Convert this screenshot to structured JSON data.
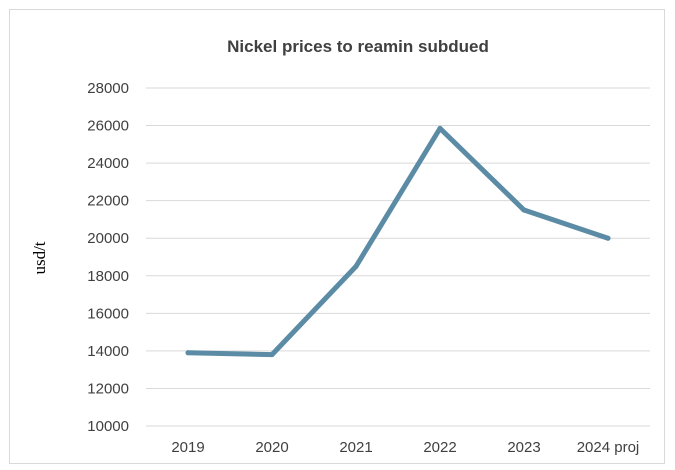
{
  "chart_data": {
    "type": "line",
    "title": "Nickel prices to reamin subdued",
    "xlabel": "",
    "ylabel": "usd/t",
    "categories": [
      "2019",
      "2020",
      "2021",
      "2022",
      "2023",
      "2024 proj"
    ],
    "series": [
      {
        "values": [
          13900,
          13800,
          18500,
          25850,
          21500,
          20000
        ],
        "color": "#5b8ba5"
      }
    ],
    "yticks": [
      "10000",
      "12000",
      "14000",
      "16000",
      "18000",
      "20000",
      "22000",
      "24000",
      "26000",
      "28000"
    ],
    "ylim": [
      10000,
      28000
    ],
    "grid": true,
    "legend": "none",
    "colors": {
      "line": "#5b8ba5",
      "grid": "#d9d9d9",
      "text": "#404040"
    }
  }
}
